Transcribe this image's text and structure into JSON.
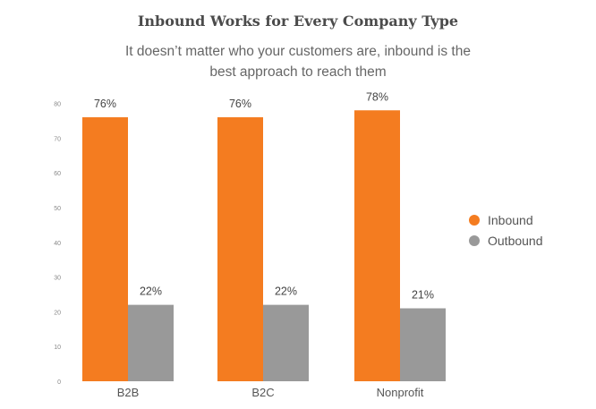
{
  "header": {
    "title": "Inbound Works for Every Company Type",
    "subtitle": "It doesn’t matter who your customers are, inbound is the best approach to reach them"
  },
  "colors": {
    "inbound": "#f47c20",
    "outbound": "#999999"
  },
  "chart_data": {
    "type": "bar",
    "title": "Inbound Works for Every Company Type",
    "subtitle": "It doesn’t matter who your customers are, inbound is the best approach to reach them",
    "categories": [
      "B2B",
      "B2C",
      "Nonprofit"
    ],
    "series": [
      {
        "name": "Inbound",
        "values": [
          76,
          76,
          78
        ],
        "labels": [
          "76%",
          "76%",
          "78%"
        ],
        "color": "#f47c20"
      },
      {
        "name": "Outbound",
        "values": [
          22,
          22,
          21
        ],
        "labels": [
          "22%",
          "22%",
          "21%"
        ],
        "color": "#999999"
      }
    ],
    "yticks": [
      0,
      10,
      20,
      30,
      40,
      50,
      60,
      70,
      80
    ],
    "ylim": [
      0,
      80
    ],
    "xlabel": "",
    "ylabel": "",
    "grid": false,
    "legend": "right"
  }
}
